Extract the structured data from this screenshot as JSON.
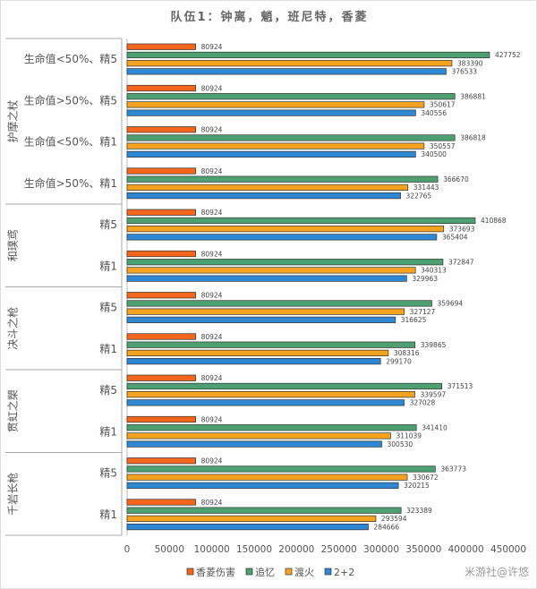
{
  "chart_data": {
    "type": "bar",
    "orientation": "horizontal",
    "title": "队伍1：钟离，魈，班尼特，香菱",
    "xlim": [
      0,
      450000
    ],
    "xticks": [
      "0",
      "50000",
      "100000",
      "150000",
      "200000",
      "250000",
      "300000",
      "350000",
      "400000",
      "450000"
    ],
    "groups": [
      {
        "name": "护摩之杖",
        "categories": [
          "生命值<50%、精5",
          "生命值>50%、精5",
          "生命值<50%、精1",
          "生命值>50%、精1"
        ]
      },
      {
        "name": "和璞鸢",
        "categories": [
          "精5",
          "精1"
        ]
      },
      {
        "name": "决斗之枪",
        "categories": [
          "精5",
          "精1"
        ]
      },
      {
        "name": "贯虹之槊",
        "categories": [
          "精5",
          "精1"
        ]
      },
      {
        "name": "千岩长枪",
        "categories": [
          "精5",
          "精1"
        ]
      }
    ],
    "series": [
      {
        "name": "香菱伤害",
        "color": "#F4661B",
        "values": [
          80924,
          80924,
          80924,
          80924,
          80924,
          80924,
          80924,
          80924,
          80924,
          80924,
          80924,
          80924
        ]
      },
      {
        "name": "追忆",
        "color": "#4EA072",
        "values": [
          427752,
          386881,
          386818,
          366670,
          410868,
          372847,
          359694,
          339865,
          371513,
          341410,
          363773,
          323389
        ]
      },
      {
        "name": "渡火",
        "color": "#F4A21F",
        "values": [
          383390,
          350617,
          350557,
          331443,
          373693,
          340313,
          327127,
          308316,
          339597,
          311039,
          330672,
          293594
        ]
      },
      {
        "name": "2+2",
        "color": "#2E87D3",
        "values": [
          376533,
          340556,
          340500,
          322765,
          365404,
          329963,
          316625,
          299170,
          327028,
          300530,
          320215,
          284666
        ]
      }
    ],
    "legend_position": "bottom",
    "grid": false
  },
  "watermark": "米游社@许悠"
}
